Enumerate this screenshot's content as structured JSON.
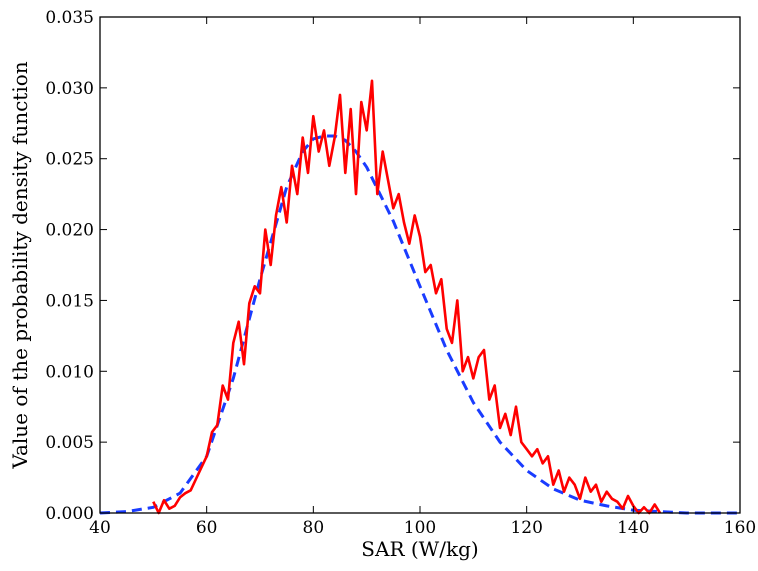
{
  "chart_data": {
    "type": "line",
    "xlabel": "SAR (W/kg)",
    "ylabel": "Value of the probability density function",
    "xlim": [
      40,
      160
    ],
    "ylim": [
      0,
      0.035
    ],
    "x_ticks": [
      "40",
      "60",
      "80",
      "100",
      "120",
      "140",
      "160"
    ],
    "y_ticks": [
      "0.000",
      "0.005",
      "0.010",
      "0.015",
      "0.020",
      "0.025",
      "0.030",
      "0.035"
    ],
    "grid": false,
    "legend": "none",
    "series": [
      {
        "style": "solid",
        "color": "#ff0000",
        "x": [
          50,
          51,
          52,
          53,
          54,
          55,
          56,
          57,
          58,
          59,
          60,
          61,
          62,
          63,
          64,
          65,
          66,
          67,
          68,
          69,
          70,
          71,
          72,
          73,
          74,
          75,
          76,
          77,
          78,
          79,
          80,
          81,
          82,
          83,
          84,
          85,
          86,
          87,
          88,
          89,
          90,
          91,
          92,
          93,
          94,
          95,
          96,
          97,
          98,
          99,
          100,
          101,
          102,
          103,
          104,
          105,
          106,
          107,
          108,
          109,
          110,
          111,
          112,
          113,
          114,
          115,
          116,
          117,
          118,
          119,
          120,
          121,
          122,
          123,
          124,
          125,
          126,
          127,
          128,
          129,
          130,
          131,
          132,
          133,
          134,
          135,
          136,
          137,
          138,
          139,
          140,
          141,
          142,
          143,
          144,
          145
        ],
        "values": [
          0.0008,
          0.0,
          0.0009,
          0.0003,
          0.0005,
          0.0011,
          0.0014,
          0.0016,
          0.0024,
          0.0032,
          0.004,
          0.0057,
          0.0062,
          0.009,
          0.008,
          0.012,
          0.0135,
          0.0105,
          0.0148,
          0.016,
          0.0155,
          0.02,
          0.0175,
          0.021,
          0.023,
          0.0205,
          0.0245,
          0.0225,
          0.0265,
          0.024,
          0.028,
          0.0255,
          0.027,
          0.0245,
          0.0265,
          0.0295,
          0.024,
          0.0285,
          0.0225,
          0.029,
          0.027,
          0.0305,
          0.0225,
          0.0255,
          0.0235,
          0.0215,
          0.0225,
          0.0205,
          0.019,
          0.021,
          0.0195,
          0.017,
          0.0175,
          0.0155,
          0.0165,
          0.013,
          0.012,
          0.015,
          0.01,
          0.011,
          0.0095,
          0.011,
          0.0115,
          0.008,
          0.009,
          0.006,
          0.007,
          0.0055,
          0.0075,
          0.005,
          0.0045,
          0.004,
          0.0045,
          0.0035,
          0.004,
          0.002,
          0.003,
          0.0015,
          0.0025,
          0.002,
          0.001,
          0.0025,
          0.0015,
          0.002,
          0.0008,
          0.0015,
          0.001,
          0.0008,
          0.0003,
          0.0012,
          0.0005,
          0.0,
          0.0004,
          0.0,
          0.0006,
          0.0
        ]
      },
      {
        "style": "dashed",
        "color": "#1a3cff",
        "x": [
          40,
          45,
          50,
          55,
          60,
          65,
          70,
          75,
          78,
          80,
          82,
          84,
          86,
          88,
          90,
          95,
          100,
          105,
          110,
          115,
          120,
          125,
          130,
          135,
          140,
          145,
          150,
          155,
          160
        ],
        "values": [
          0.0,
          0.0001,
          0.0004,
          0.0014,
          0.004,
          0.0095,
          0.0165,
          0.023,
          0.0255,
          0.0264,
          0.0266,
          0.0266,
          0.0263,
          0.0255,
          0.0244,
          0.0206,
          0.016,
          0.0115,
          0.0078,
          0.005,
          0.003,
          0.0017,
          0.0009,
          0.0005,
          0.0002,
          0.0001,
          0.0,
          0.0,
          0.0
        ]
      }
    ]
  }
}
